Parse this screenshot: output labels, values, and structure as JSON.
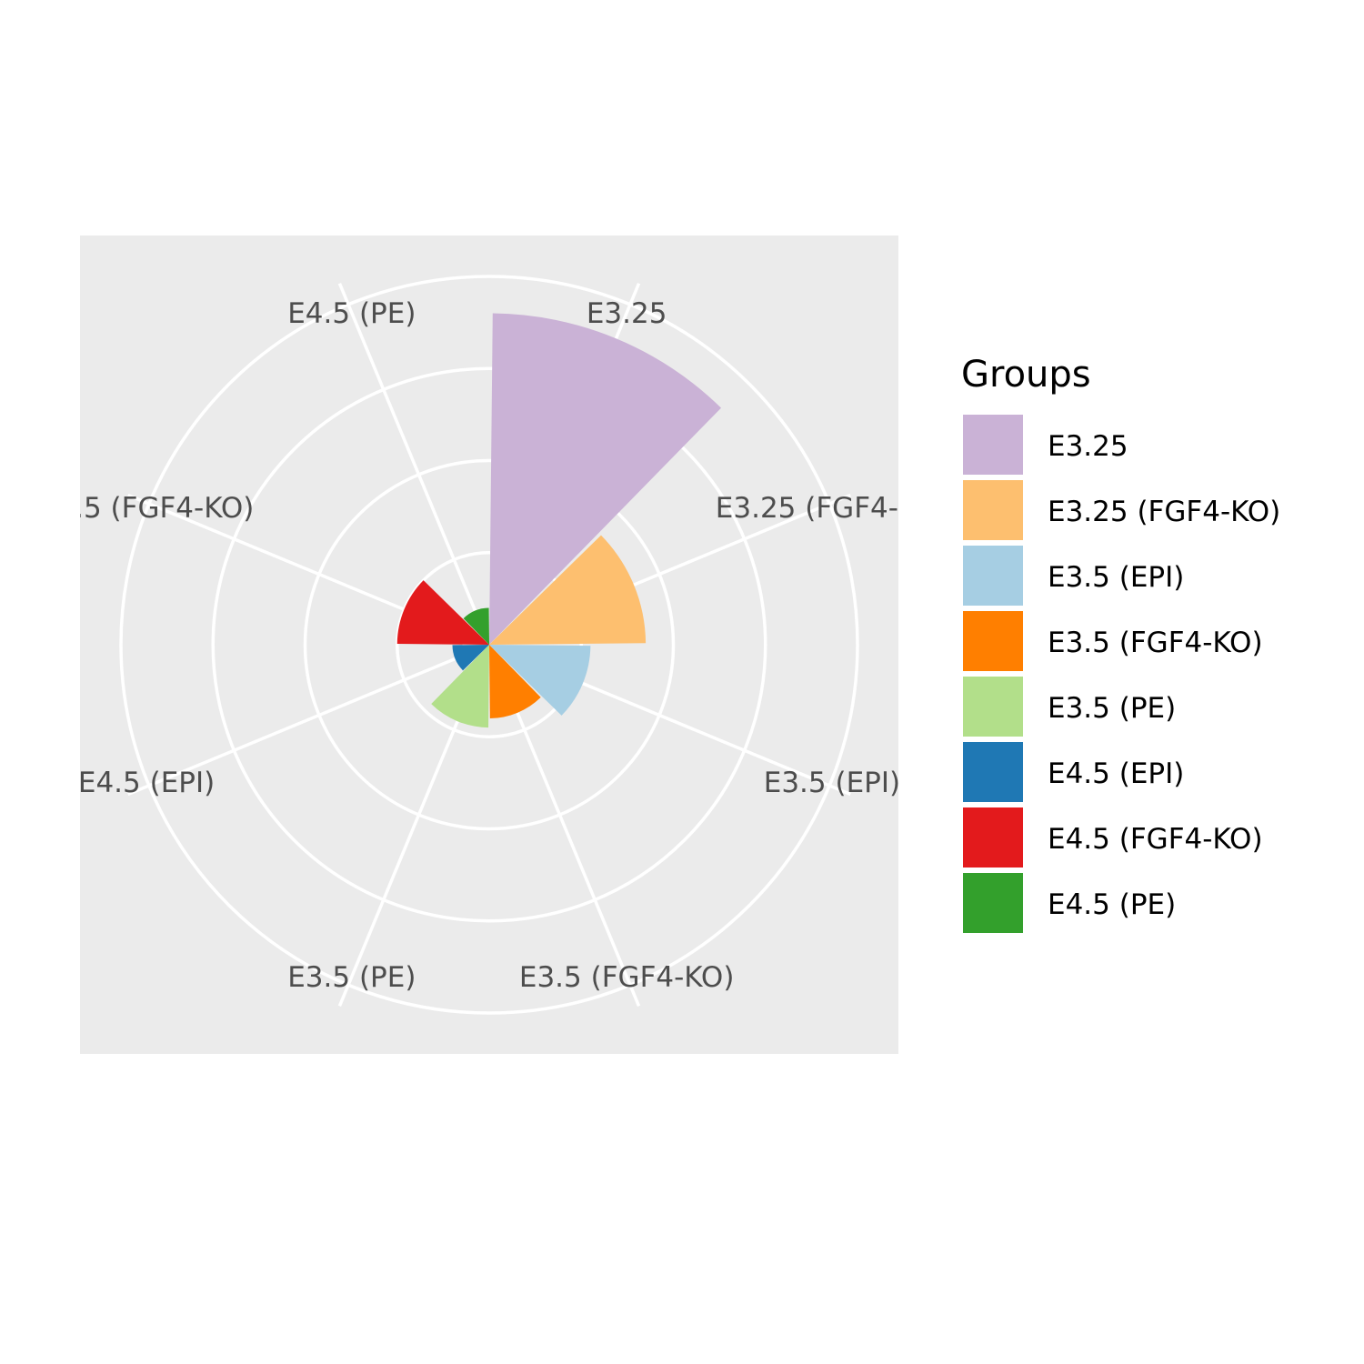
{
  "chart_data": {
    "type": "bar",
    "coord": "polar",
    "categories": [
      "E3.25",
      "E3.25 (FGF4-KO)",
      "E3.5 (EPI)",
      "E3.5 (FGF4-KO)",
      "E3.5 (PE)",
      "E4.5 (EPI)",
      "E4.5 (FGF4-KO)",
      "E4.5 (PE)"
    ],
    "values": [
      36,
      17,
      11,
      8,
      9,
      4,
      10,
      4
    ],
    "rlim": [
      0,
      40
    ],
    "grid": true,
    "legend": {
      "title": "Groups",
      "position": "right",
      "entries": [
        "E3.25",
        "E3.25 (FGF4-KO)",
        "E3.5 (EPI)",
        "E3.5 (FGF4-KO)",
        "E3.5 (PE)",
        "E4.5 (EPI)",
        "E4.5 (FGF4-KO)",
        "E4.5 (PE)"
      ]
    },
    "colors": [
      "#cab2d6",
      "#fdbf6f",
      "#a6cee3",
      "#ff7f00",
      "#b2df8a",
      "#1f78b4",
      "#e31a1c",
      "#33a02c"
    ],
    "panel_background": "#ebebeb",
    "grid_color": "#ffffff"
  }
}
